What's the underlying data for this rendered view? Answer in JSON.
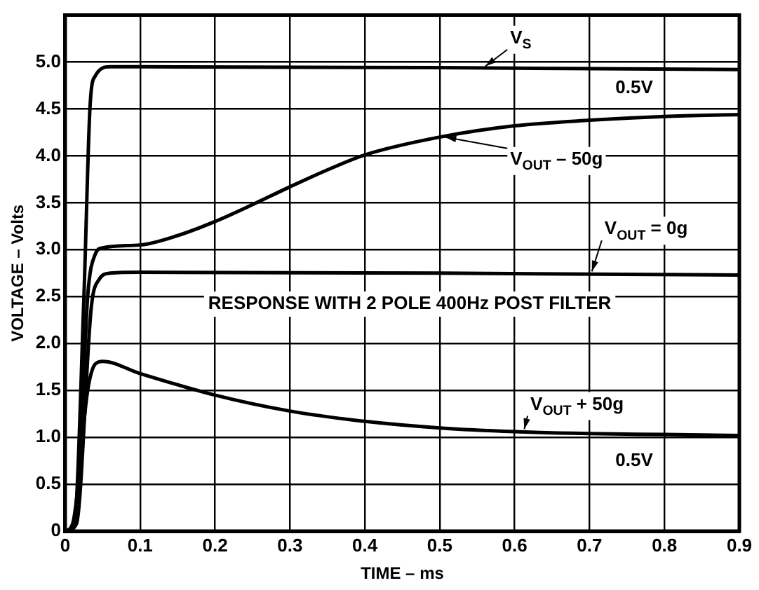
{
  "chart_data": {
    "type": "line",
    "xlabel": "TIME – ms",
    "ylabel": "VOLTAGE – Volts",
    "xlim": [
      0,
      0.9
    ],
    "xticks": [
      0,
      0.1,
      0.2,
      0.3,
      0.4,
      0.5,
      0.6,
      0.7,
      0.8,
      0.9
    ],
    "ylim": [
      0,
      5.5
    ],
    "yticks": [
      0,
      {
        "value": 0.5,
        "label": "0.5"
      },
      {
        "value": 1,
        "label": "1.0"
      },
      {
        "value": 1.5,
        "label": "1.5"
      },
      {
        "value": 2,
        "label": "2.0"
      },
      {
        "value": 2.5,
        "label": "2.5"
      },
      {
        "value": 3,
        "label": "3.0"
      },
      {
        "value": 3.5,
        "label": "3.5"
      },
      {
        "value": 4,
        "label": "4.0"
      },
      {
        "value": 4.5,
        "label": "4.5"
      },
      {
        "value": 5,
        "label": "5.0"
      }
    ],
    "grid": true,
    "legend": false,
    "marker": "none",
    "line_style": "solid",
    "series": [
      {
        "name": "V$_{S}$",
        "color": "#000000",
        "x": [
          0,
          0.012,
          0.025,
          0.033,
          0.04,
          0.06,
          0.1,
          0.5,
          0.9
        ],
        "values": [
          0,
          0.05,
          2.5,
          4.5,
          4.85,
          4.95,
          4.95,
          4.94,
          4.92
        ]
      },
      {
        "name": "V$_{OUT}$ – 50g",
        "color": "#000000",
        "x": [
          0,
          0.015,
          0.03,
          0.04,
          0.05,
          0.1,
          0.15,
          0.2,
          0.25,
          0.3,
          0.35,
          0.4,
          0.5,
          0.6,
          0.7,
          0.8,
          0.9
        ],
        "values": [
          0,
          0.08,
          2.5,
          2.95,
          3.02,
          3.05,
          3.15,
          3.3,
          3.48,
          3.67,
          3.85,
          4.01,
          4.2,
          4.32,
          4.38,
          4.42,
          4.44
        ]
      },
      {
        "name": "V$_{OUT}$ = 0g",
        "color": "#000000",
        "x": [
          0,
          0.015,
          0.035,
          0.045,
          0.06,
          0.1,
          0.5,
          0.9
        ],
        "values": [
          0,
          0.08,
          2.4,
          2.68,
          2.75,
          2.76,
          2.75,
          2.73
        ]
      },
      {
        "name": "V$_{OUT}$ + 50g",
        "color": "#000000",
        "x": [
          0,
          0.01,
          0.03,
          0.04,
          0.05,
          0.1,
          0.2,
          0.3,
          0.4,
          0.5,
          0.6,
          0.7,
          0.8,
          0.9
        ],
        "values": [
          0,
          0.08,
          1.5,
          1.78,
          1.81,
          1.68,
          1.45,
          1.28,
          1.17,
          1.1,
          1.06,
          1.04,
          1.03,
          1.02
        ]
      }
    ],
    "annotations": [
      "0.5V",
      "0.5V",
      "RESPONSE WITH 2 POLE 400Hz POST FILTER"
    ]
  }
}
